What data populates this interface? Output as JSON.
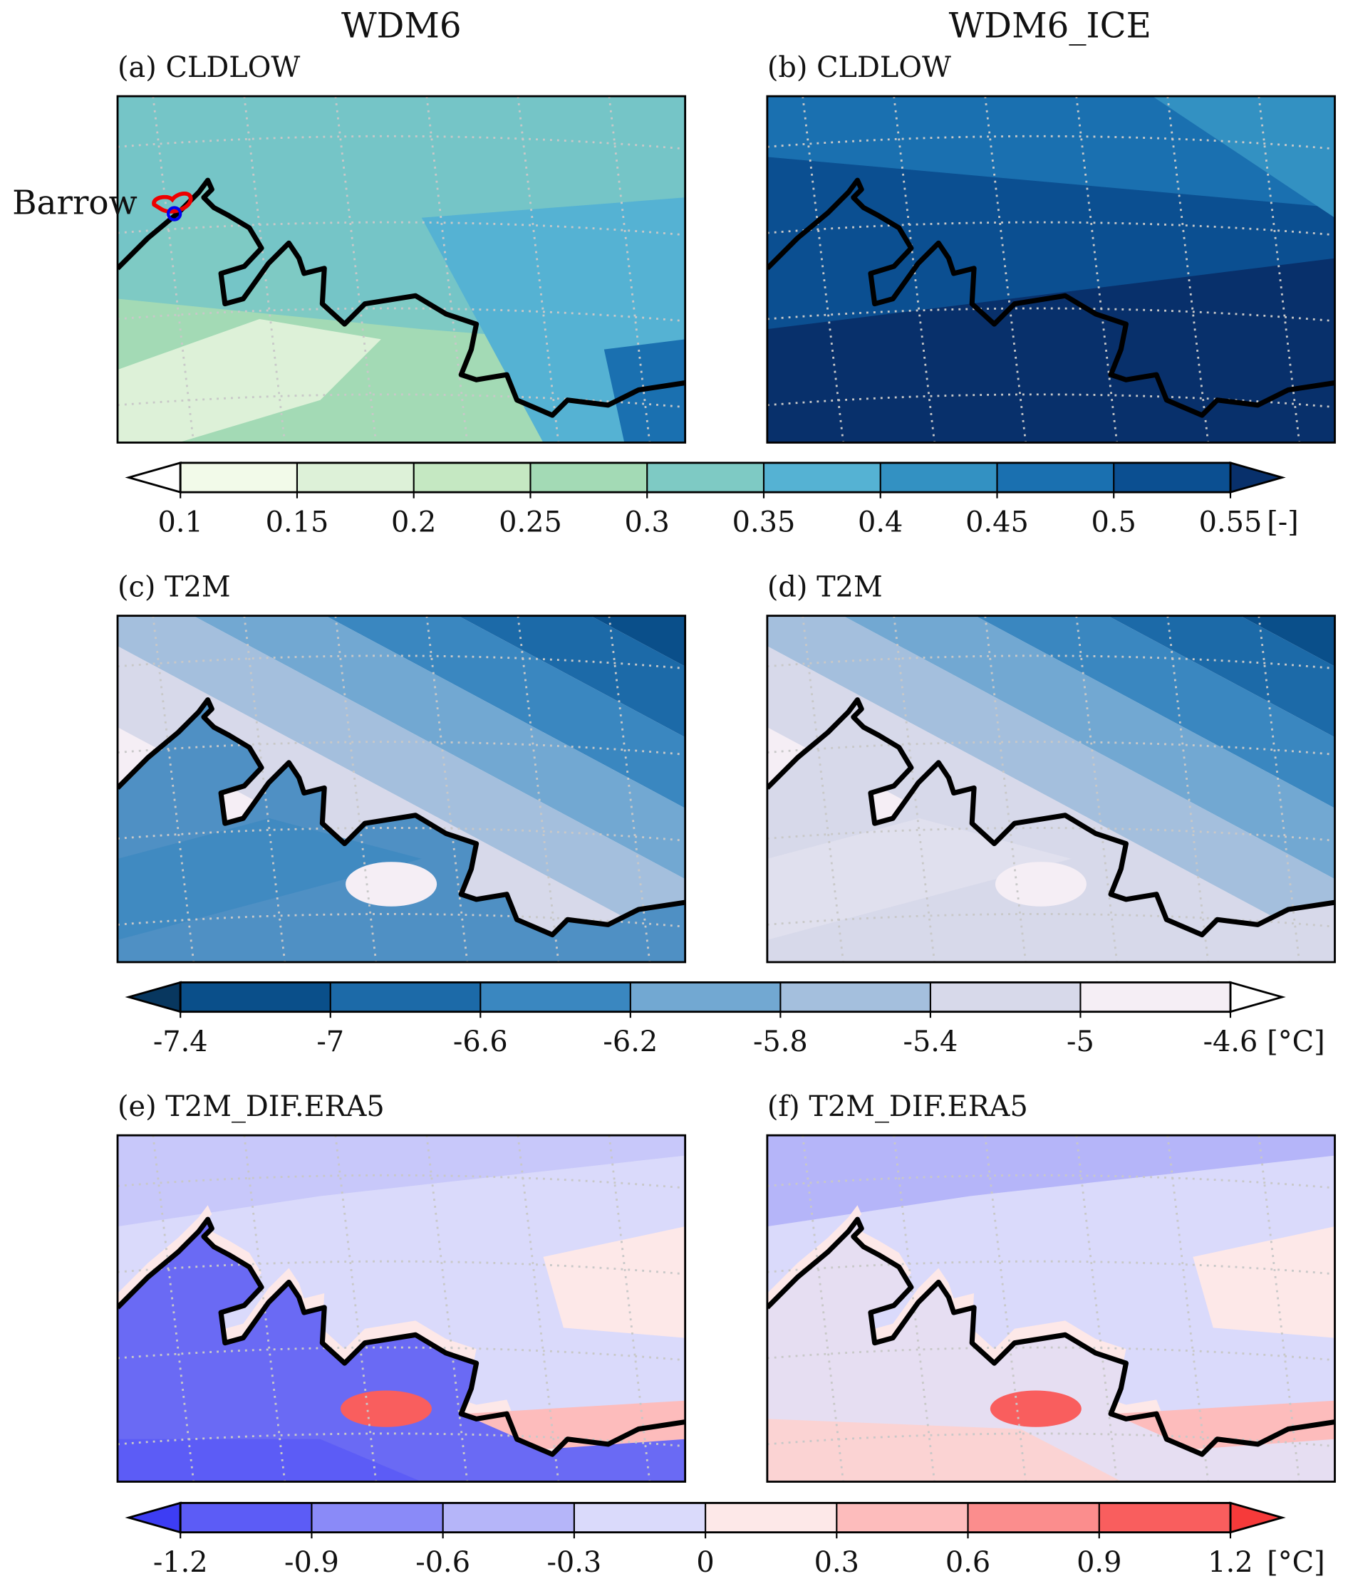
{
  "column_titles": [
    "WDM6",
    "WDM6_ICE"
  ],
  "annotation": "Barrow",
  "panels": [
    {
      "label": "(a) CLDLOW"
    },
    {
      "label": "(b) CLDLOW"
    },
    {
      "label": "(c) T2M"
    },
    {
      "label": "(d) T2M"
    },
    {
      "label": "(e) T2M_DIF.ERA5"
    },
    {
      "label": "(f) T2M_DIF.ERA5"
    }
  ],
  "colorbars": [
    {
      "unit": "[-]",
      "lim": [
        0.1,
        0.55
      ],
      "ticks": [
        0.1,
        0.15,
        0.2,
        0.25,
        0.3,
        0.35,
        0.4,
        0.45,
        0.5,
        0.55
      ],
      "colors": [
        "#f2fae9",
        "#ddf1d8",
        "#c5e8c2",
        "#a3dab5",
        "#7ecac4",
        "#55b2d3",
        "#3391c2",
        "#1a70b0",
        "#0b4f91"
      ],
      "extend_colors": [
        "#ffffff",
        "#08306b"
      ]
    },
    {
      "unit": "[°C]",
      "lim": [
        -7.4,
        -4.6
      ],
      "ticks": [
        -7.4,
        -7,
        -6.6,
        -6.2,
        -5.8,
        -5.4,
        -5,
        -4.6
      ],
      "colors": [
        "#0a4f8a",
        "#1c6aa8",
        "#3a87c0",
        "#72a8d2",
        "#a4bfdd",
        "#d7d9ea",
        "#f5eef5"
      ],
      "extend_colors": [
        "#08375f",
        "#ffffff"
      ]
    },
    {
      "unit": "[°C]",
      "lim": [
        -1.2,
        1.2
      ],
      "ticks": [
        -1.2,
        -0.9,
        -0.6,
        -0.3,
        0,
        0.3,
        0.6,
        0.9,
        1.2
      ],
      "colors": [
        "#5c5cf6",
        "#8a8af8",
        "#b5b5f9",
        "#dadafb",
        "#fde8e8",
        "#fdbcbc",
        "#fb8d8d",
        "#f95e5e"
      ],
      "extend_colors": [
        "#3d3df4",
        "#f63a3a"
      ]
    }
  ]
}
